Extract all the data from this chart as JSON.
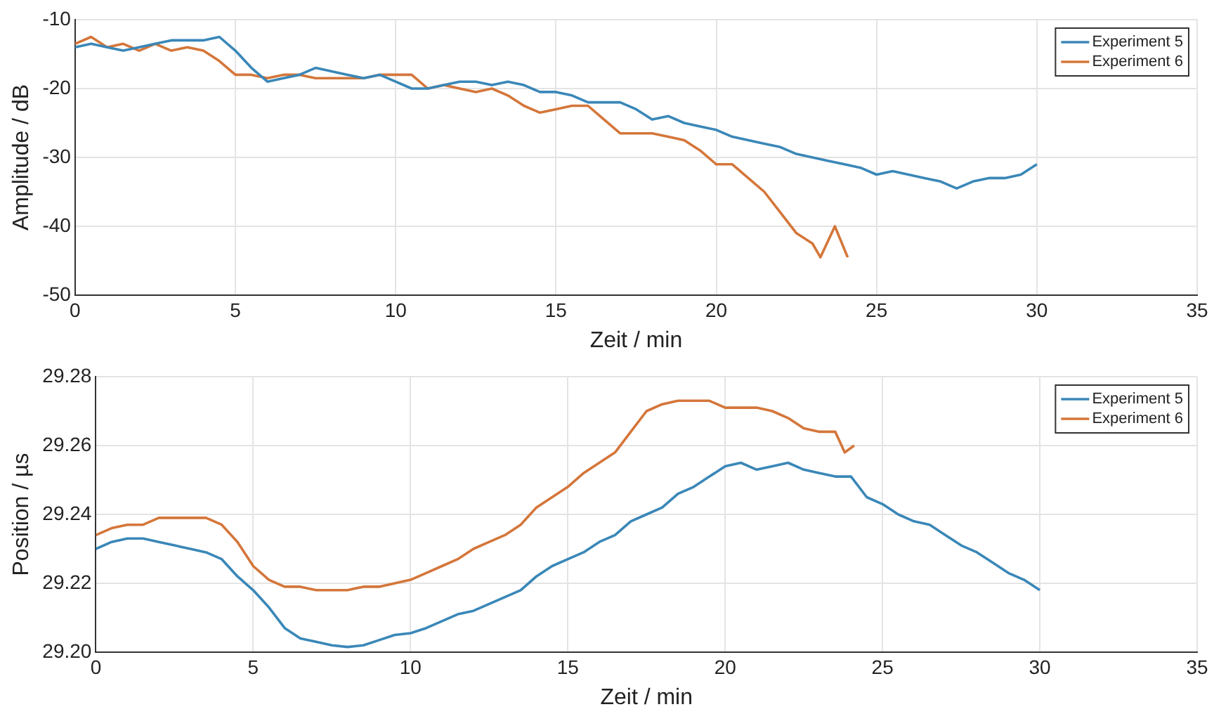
{
  "chart_data": [
    {
      "type": "line",
      "xlabel": "Zeit / min",
      "ylabel": "Amplitude / dB",
      "xlim": [
        0,
        35
      ],
      "xticks": [
        0,
        5,
        10,
        15,
        20,
        25,
        30,
        35
      ],
      "ylim": [
        -50,
        -10
      ],
      "yticks": [
        -50,
        -40,
        -30,
        -20,
        -10
      ],
      "grid": true,
      "legend": "top right",
      "marker": "none",
      "line_style": "solid",
      "series": [
        {
          "name": "Experiment 5",
          "color": "#3a87b8",
          "x": [
            0,
            0.5,
            1,
            1.5,
            2,
            2.5,
            3,
            3.5,
            4,
            4.5,
            5,
            5.5,
            6,
            6.5,
            7,
            7.5,
            8,
            8.5,
            9,
            9.5,
            10,
            10.5,
            11,
            11.5,
            12,
            12.5,
            13,
            13.5,
            14,
            14.5,
            15,
            15.5,
            16,
            16.5,
            17,
            17.5,
            18,
            18.5,
            19,
            19.5,
            20,
            20.5,
            21,
            21.5,
            22,
            22.5,
            23,
            23.5,
            24,
            24.5,
            25,
            25.5,
            26,
            26.5,
            27,
            27.5,
            28,
            28.5,
            29,
            29.5,
            30
          ],
          "values": [
            -14,
            -13.5,
            -14,
            -14.5,
            -14,
            -13.5,
            -13,
            -13,
            -13,
            -12.5,
            -14.5,
            -17,
            -19,
            -18.5,
            -18,
            -17,
            -17.5,
            -18,
            -18.5,
            -18,
            -19,
            -20,
            -20,
            -19.5,
            -19,
            -19,
            -19.5,
            -19,
            -19.5,
            -20.5,
            -20.5,
            -21,
            -22,
            -22,
            -22,
            -23,
            -24.5,
            -24,
            -25,
            -25.5,
            -26,
            -27,
            -27.5,
            -28,
            -28.5,
            -29.5,
            -30,
            -30.5,
            -31,
            -31.5,
            -32.5,
            -32,
            -32.5,
            -33,
            -33.5,
            -34.5,
            -33.5,
            -33,
            -33,
            -32.5,
            -31
          ]
        },
        {
          "name": "Experiment 6",
          "color": "#d4763a",
          "x": [
            0,
            0.5,
            1,
            1.5,
            2,
            2.5,
            3,
            3.5,
            4,
            4.5,
            5,
            5.5,
            6,
            6.5,
            7,
            7.5,
            8,
            8.5,
            9,
            9.5,
            10,
            10.5,
            11,
            11.5,
            12,
            12.5,
            13,
            13.5,
            14,
            14.5,
            15,
            15.5,
            16,
            16.5,
            17,
            17.5,
            18,
            18.5,
            19,
            19.5,
            20,
            20.5,
            21,
            21.5,
            22,
            22.5,
            23,
            23.25,
            23.7,
            24.1
          ],
          "values": [
            -13.5,
            -12.5,
            -14,
            -13.5,
            -14.5,
            -13.5,
            -14.5,
            -14,
            -14.5,
            -16,
            -18,
            -18,
            -18.5,
            -18,
            -18,
            -18.5,
            -18.5,
            -18.5,
            -18.5,
            -18,
            -18,
            -18,
            -20,
            -19.5,
            -20,
            -20.5,
            -20,
            -21,
            -22.5,
            -23.5,
            -23,
            -22.5,
            -22.5,
            -24.5,
            -26.5,
            -26.5,
            -26.5,
            -27,
            -27.5,
            -29,
            -31,
            -31,
            -33,
            -35,
            -38,
            -41,
            -42.5,
            -44.5,
            -40,
            -44.5
          ]
        }
      ]
    },
    {
      "type": "line",
      "xlabel": "Zeit / min",
      "ylabel": "Position / µs",
      "xlim": [
        0,
        35
      ],
      "xticks": [
        0,
        5,
        10,
        15,
        20,
        25,
        30,
        35
      ],
      "ylim": [
        29.2,
        29.28
      ],
      "yticks": [
        {
          "value": 29.2,
          "label": "29.20"
        },
        {
          "value": 29.22,
          "label": "29.22"
        },
        {
          "value": 29.24,
          "label": "29.24"
        },
        {
          "value": 29.26,
          "label": "29.26"
        },
        {
          "value": 29.28,
          "label": "29.28"
        }
      ],
      "grid": true,
      "legend": "top right",
      "marker": "none",
      "line_style": "solid",
      "series": [
        {
          "name": "Experiment 5",
          "color": "#3a87b8",
          "x": [
            0,
            0.5,
            1,
            1.5,
            2,
            2.5,
            3,
            3.5,
            4,
            4.5,
            5,
            5.5,
            6,
            6.5,
            7,
            7.5,
            8,
            8.5,
            9,
            9.5,
            10,
            10.5,
            11,
            11.5,
            12,
            12.5,
            13,
            13.5,
            14,
            14.5,
            15,
            15.5,
            16,
            16.5,
            17,
            17.5,
            18,
            18.5,
            19,
            19.5,
            20,
            20.5,
            21,
            21.5,
            22,
            22.5,
            23,
            23.5,
            24,
            24.5,
            25,
            25.5,
            26,
            26.5,
            27,
            27.5,
            28,
            28.5,
            29,
            29.5,
            30
          ],
          "values": [
            29.23,
            29.232,
            29.233,
            29.233,
            29.232,
            29.231,
            29.23,
            29.229,
            29.227,
            29.222,
            29.218,
            29.213,
            29.207,
            29.204,
            29.203,
            29.202,
            29.2015,
            29.202,
            29.2035,
            29.205,
            29.2055,
            29.207,
            29.209,
            29.211,
            29.212,
            29.214,
            29.216,
            29.218,
            29.222,
            29.225,
            29.227,
            29.229,
            29.232,
            29.234,
            29.238,
            29.24,
            29.242,
            29.246,
            29.248,
            29.251,
            29.254,
            29.255,
            29.253,
            29.254,
            29.255,
            29.253,
            29.252,
            29.251,
            29.251,
            29.245,
            29.243,
            29.24,
            29.238,
            29.237,
            29.234,
            29.231,
            29.229,
            29.226,
            29.223,
            29.221,
            29.218
          ]
        },
        {
          "name": "Experiment 6",
          "color": "#d4763a",
          "x": [
            0,
            0.5,
            1,
            1.5,
            2,
            2.5,
            3,
            3.5,
            4,
            4.5,
            5,
            5.5,
            6,
            6.5,
            7,
            7.5,
            8,
            8.5,
            9,
            9.5,
            10,
            10.5,
            11,
            11.5,
            12,
            12.5,
            13,
            13.5,
            14,
            14.5,
            15,
            15.5,
            16,
            16.5,
            17,
            17.5,
            18,
            18.5,
            19,
            19.5,
            20,
            20.5,
            21,
            21.5,
            22,
            22.5,
            23,
            23.5,
            23.8,
            24.1
          ],
          "values": [
            29.234,
            29.236,
            29.237,
            29.237,
            29.239,
            29.239,
            29.239,
            29.239,
            29.237,
            29.232,
            29.225,
            29.221,
            29.219,
            29.219,
            29.218,
            29.218,
            29.218,
            29.219,
            29.219,
            29.22,
            29.221,
            29.223,
            29.225,
            29.227,
            29.23,
            29.232,
            29.234,
            29.237,
            29.242,
            29.245,
            29.248,
            29.252,
            29.255,
            29.258,
            29.264,
            29.27,
            29.272,
            29.273,
            29.273,
            29.273,
            29.271,
            29.271,
            29.271,
            29.27,
            29.268,
            29.265,
            29.264,
            29.264,
            29.258,
            29.26
          ]
        }
      ]
    }
  ]
}
